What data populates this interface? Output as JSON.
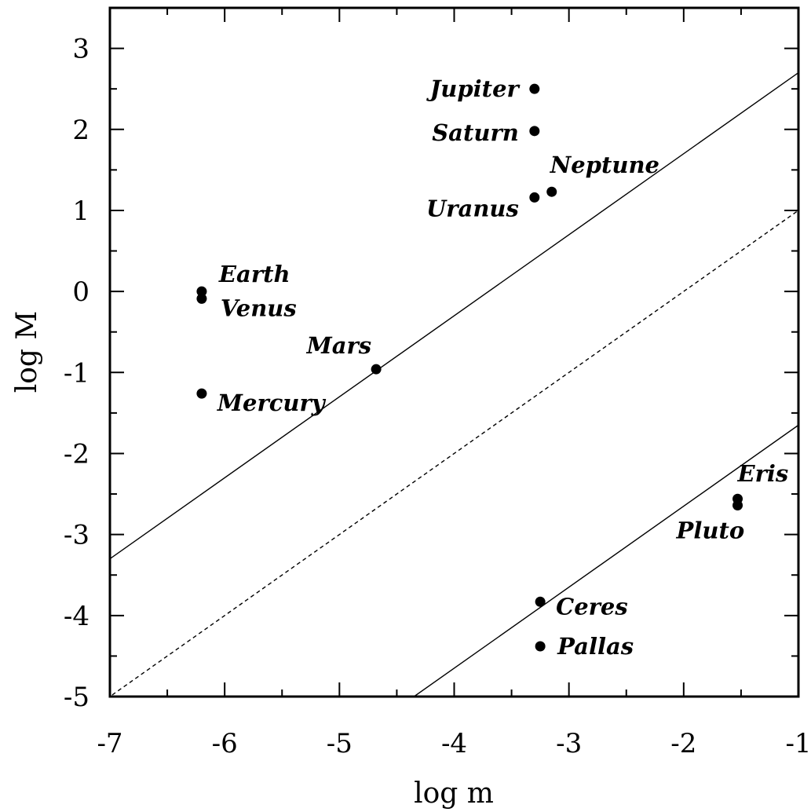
{
  "chart_data": {
    "type": "scatter",
    "xlabel": "log m",
    "ylabel": "log M",
    "xlim": [
      -7,
      -1
    ],
    "ylim": [
      -5,
      3.5
    ],
    "x_ticks": [
      -7,
      -6,
      -5,
      -4,
      -3,
      -2,
      -1
    ],
    "y_ticks": [
      3,
      2,
      1,
      0,
      -1,
      -2,
      -3,
      -4,
      -5
    ],
    "x_tick_labels": [
      "-7",
      "-6",
      "-5",
      "-4",
      "-3",
      "-2",
      "-1"
    ],
    "y_tick_labels": [
      "3",
      "2",
      "1",
      "0",
      "-1",
      "-2",
      "-3",
      "-4",
      "-5"
    ],
    "grid": false,
    "points": [
      {
        "label": "Jupiter",
        "x": -3.3,
        "y": 2.5
      },
      {
        "label": "Saturn",
        "x": -3.3,
        "y": 1.98
      },
      {
        "label": "Neptune",
        "x": -3.15,
        "y": 1.23
      },
      {
        "label": "Uranus",
        "x": -3.3,
        "y": 1.16
      },
      {
        "label": "Earth",
        "x": -6.2,
        "y": 0.0
      },
      {
        "label": "Venus",
        "x": -6.2,
        "y": -0.09
      },
      {
        "label": "Mars",
        "x": -4.68,
        "y": -0.96
      },
      {
        "label": "Mercury",
        "x": -6.2,
        "y": -1.26
      },
      {
        "label": "Eris",
        "x": -1.53,
        "y": -2.56
      },
      {
        "label": "Pluto",
        "x": -1.53,
        "y": -2.64
      },
      {
        "label": "Ceres",
        "x": -3.25,
        "y": -3.83
      },
      {
        "label": "Pallas",
        "x": -3.25,
        "y": -4.38
      }
    ],
    "lines": [
      {
        "style": "solid",
        "x": [
          -7,
          -1
        ],
        "y": [
          -3.3,
          2.7
        ]
      },
      {
        "style": "dashed",
        "x": [
          -6.98,
          -1
        ],
        "y": [
          -4.98,
          1.0
        ]
      },
      {
        "style": "solid",
        "x": [
          -4.35,
          -1
        ],
        "y": [
          -5.0,
          -1.65
        ]
      }
    ]
  }
}
